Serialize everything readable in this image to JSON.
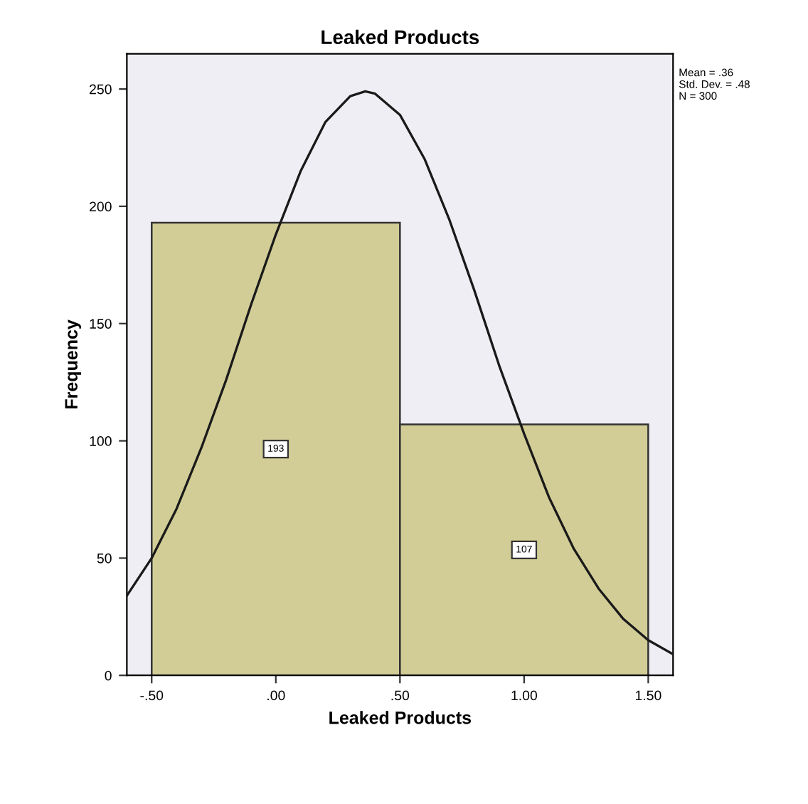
{
  "chart_data": {
    "type": "histogram",
    "title": "Leaked Products",
    "xlabel": "Leaked Products",
    "ylabel": "Frequency",
    "bins": [
      -0.5,
      0.5,
      1.5
    ],
    "values": [
      193,
      107
    ],
    "color": "#d2cd96",
    "value_labels": [
      "193",
      "107"
    ],
    "series": [
      {
        "type": "line",
        "color": "#1a1a1a",
        "x": [
          -0.6,
          -0.5,
          -0.4,
          -0.3,
          -0.2,
          -0.1,
          0.0,
          0.1,
          0.2,
          0.3,
          0.36,
          0.4,
          0.5,
          0.6,
          0.7,
          0.8,
          0.9,
          1.0,
          1.1,
          1.2,
          1.3,
          1.4,
          1.5,
          1.6
        ],
        "values": [
          34,
          50,
          71,
          97,
          126,
          158,
          188,
          215,
          236,
          247,
          249,
          248,
          239,
          220,
          194,
          164,
          132,
          103,
          76,
          54,
          37,
          24,
          15,
          9
        ]
      }
    ],
    "xlim": [
      -0.6,
      1.6
    ],
    "ylim": [
      0,
      265
    ],
    "xticks": [
      {
        "value": -0.5,
        "label": "-.50"
      },
      {
        "value": 0,
        "label": ".00"
      },
      {
        "value": 0.5,
        "label": ".50"
      },
      {
        "value": 1.0,
        "label": "1.00"
      },
      {
        "value": 1.5,
        "label": "1.50"
      }
    ],
    "yticks": [
      0,
      50,
      100,
      150,
      200,
      250
    ],
    "grid": false,
    "legend": false,
    "annotations": [
      "Mean = .36\nStd. Dev. = .48\nN = 300"
    ]
  }
}
